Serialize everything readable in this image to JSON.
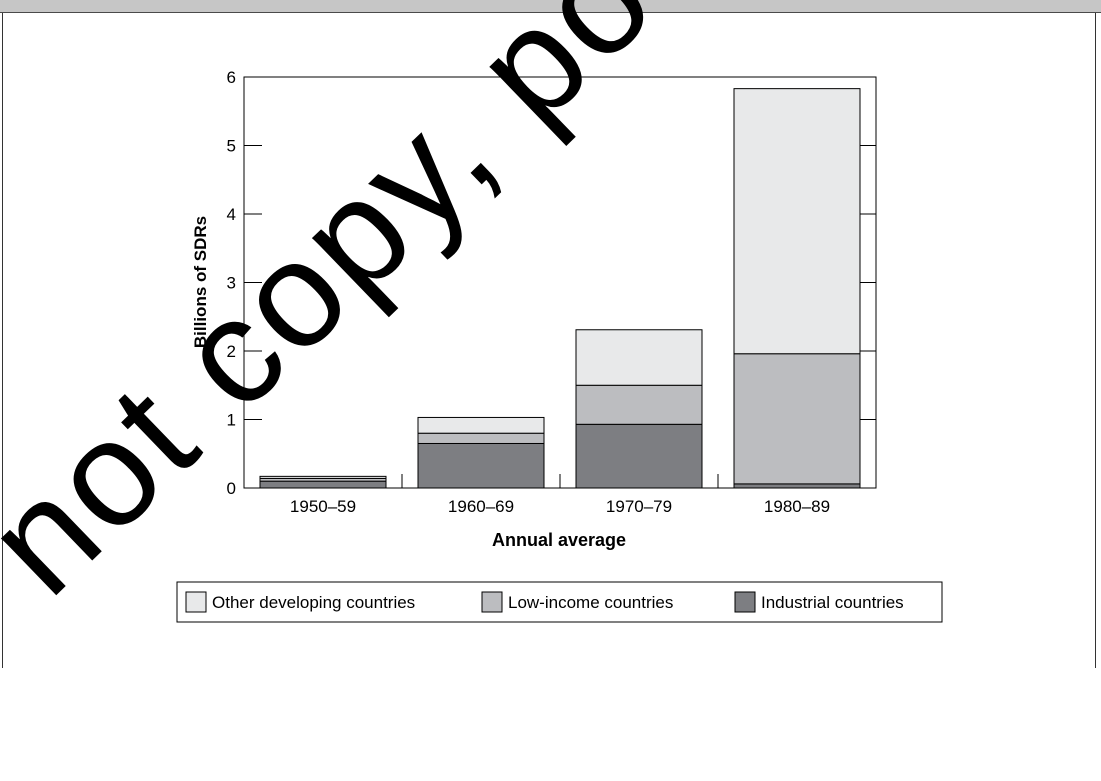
{
  "watermark": "do not copy, post",
  "chart_data": {
    "type": "bar",
    "stacked": true,
    "categories": [
      "1950–59",
      "1960–69",
      "1970–79",
      "1980–89"
    ],
    "series": [
      {
        "name": "Industrial countries",
        "values": [
          0.1,
          0.65,
          0.93,
          0.06
        ],
        "color": "#7d7e82"
      },
      {
        "name": "Low-income countries",
        "values": [
          0.04,
          0.15,
          0.57,
          1.9
        ],
        "color": "#bcbdc0"
      },
      {
        "name": "Other developing countries",
        "values": [
          0.03,
          0.23,
          0.81,
          3.87
        ],
        "color": "#e8e9ea"
      }
    ],
    "xlabel": "Annual average",
    "ylabel": "Billions of SDRs",
    "ylim": [
      0,
      6
    ],
    "yticks": [
      0,
      1,
      2,
      3,
      4,
      5,
      6
    ],
    "legend_order": [
      "Other developing countries",
      "Low-income countries",
      "Industrial countries"
    ],
    "legend_position": "bottom"
  }
}
